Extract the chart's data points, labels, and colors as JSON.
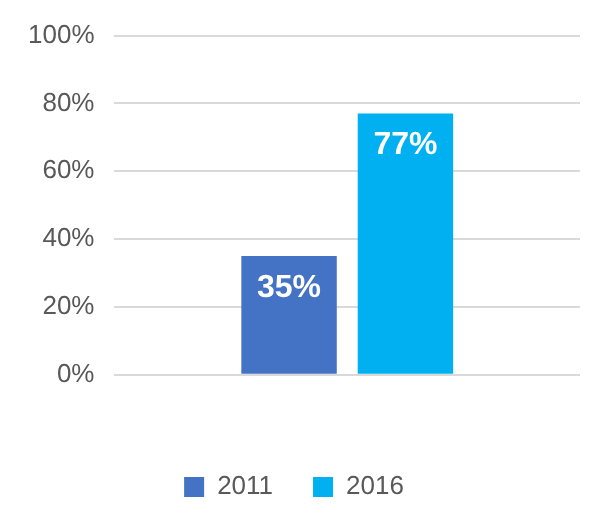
{
  "chart_data": {
    "type": "bar",
    "categories": [
      null
    ],
    "series": [
      {
        "name": "2011",
        "color": "#4472c4",
        "values": [
          35
        ],
        "value_labels": [
          "35%"
        ]
      },
      {
        "name": "2016",
        "color": "#00b0f0",
        "values": [
          77
        ],
        "value_labels": [
          "77%"
        ]
      }
    ],
    "ylim": [
      0,
      100
    ],
    "yticks": [
      {
        "value": 0,
        "label": "0%"
      },
      {
        "value": 20,
        "label": "20%"
      },
      {
        "value": 40,
        "label": "40%"
      },
      {
        "value": 60,
        "label": "60%"
      },
      {
        "value": 80,
        "label": "80%"
      },
      {
        "value": 100,
        "label": "100%"
      }
    ],
    "grid": "y",
    "legend": "bottom"
  }
}
